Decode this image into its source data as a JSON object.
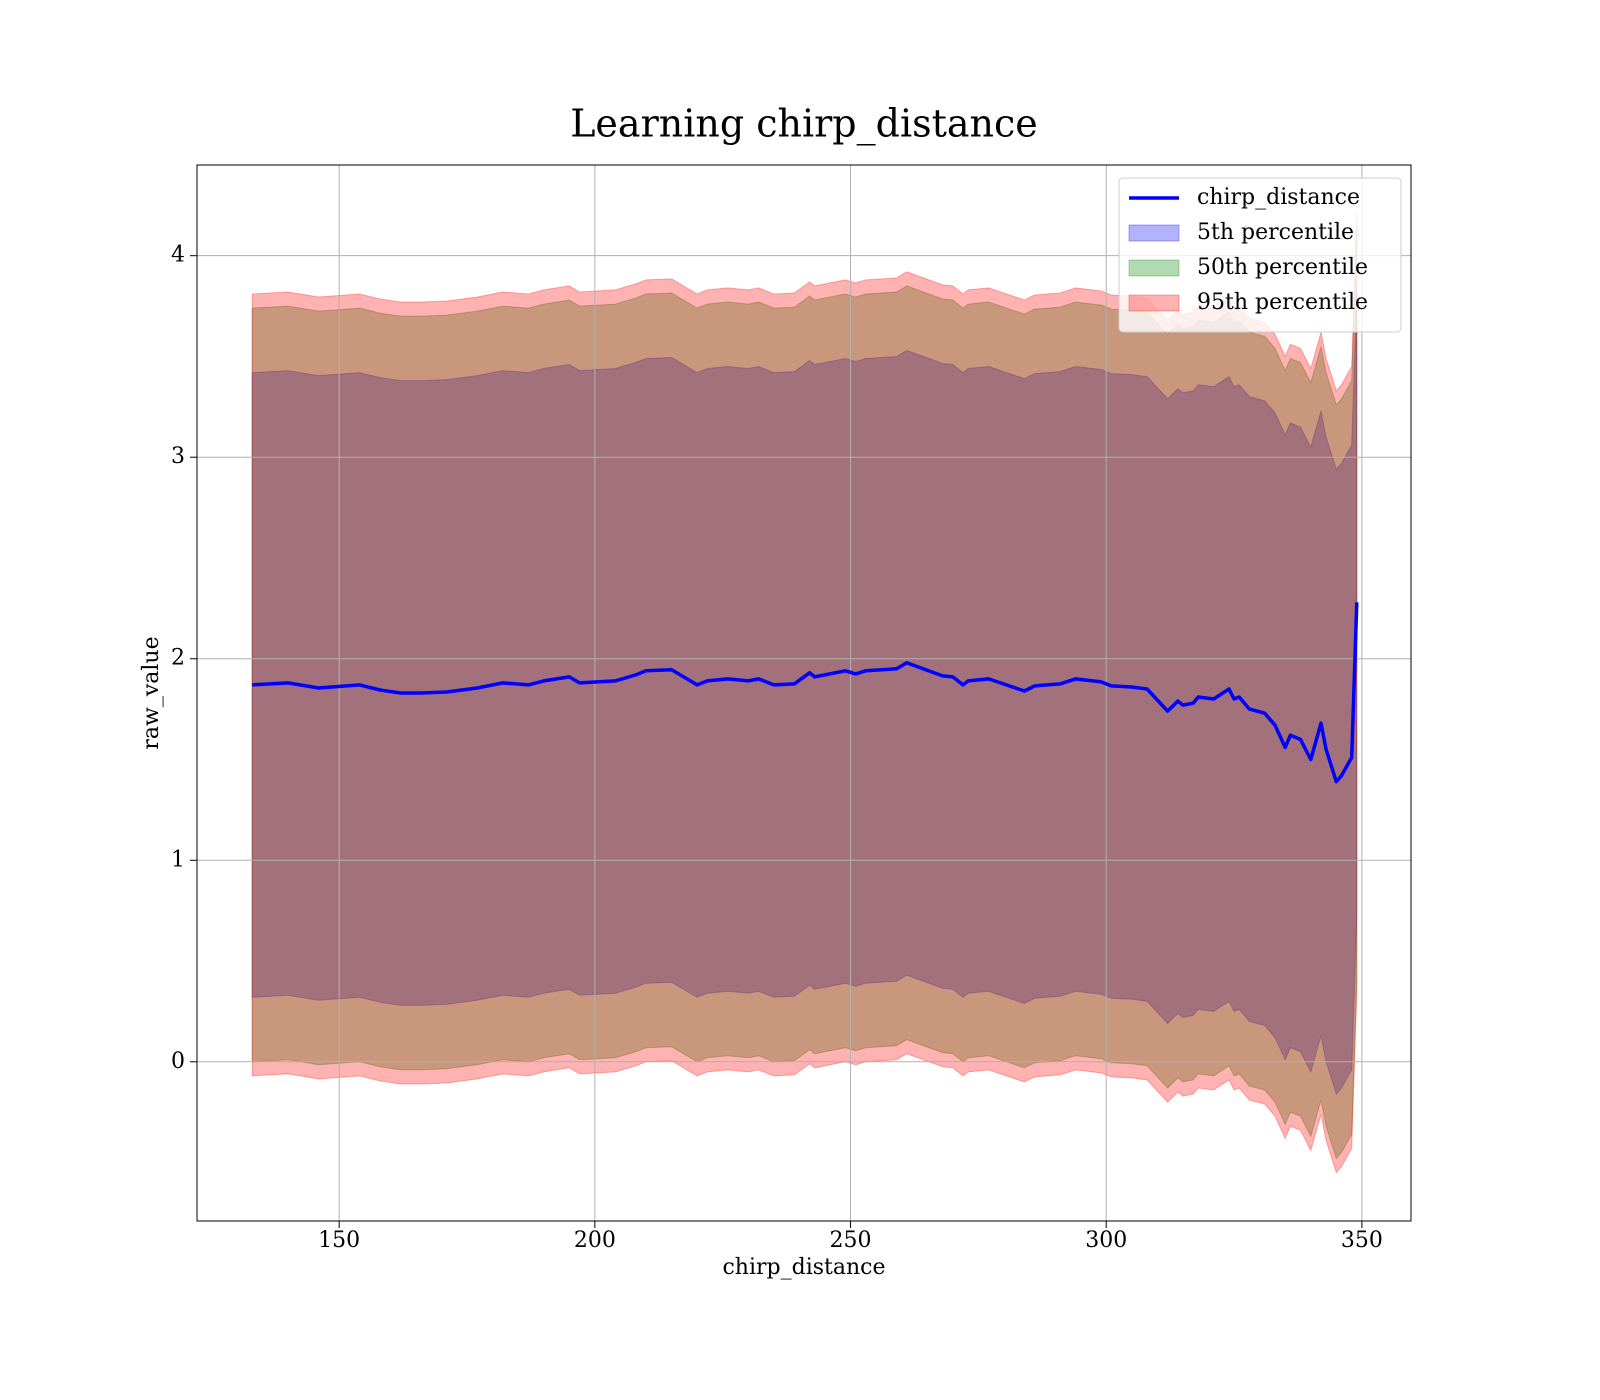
{
  "chart_data": {
    "type": "line",
    "title": "Learning chirp_distance",
    "xlabel": "chirp_distance",
    "ylabel": "raw_value",
    "xlim": [
      122.2,
      359.6
    ],
    "ylim": [
      -0.79,
      4.45
    ],
    "xticks": [
      150,
      200,
      250,
      300,
      350
    ],
    "yticks": [
      0,
      1,
      2,
      3,
      4
    ],
    "grid": true,
    "legend": "upper right",
    "x": [
      133,
      140,
      146,
      154,
      158,
      162,
      166,
      171,
      177,
      182,
      187,
      190,
      195,
      197,
      204,
      208,
      210,
      215,
      220,
      222,
      226,
      230,
      232,
      235,
      239,
      242,
      243,
      249,
      251,
      253,
      259,
      261,
      268,
      270,
      272,
      273,
      277,
      284,
      286,
      291,
      294,
      299,
      301,
      305,
      308,
      312,
      314,
      315,
      317,
      318,
      321,
      324,
      325,
      326,
      328,
      331,
      333,
      335,
      336,
      338,
      340,
      342,
      343,
      345,
      346,
      348,
      349
    ],
    "series": [
      {
        "name": "chirp_distance",
        "color": "#0000ff",
        "values": [
          1.87,
          1.88,
          1.855,
          1.87,
          1.845,
          1.83,
          1.83,
          1.835,
          1.855,
          1.88,
          1.87,
          1.89,
          1.91,
          1.88,
          1.89,
          1.92,
          1.94,
          1.945,
          1.87,
          1.89,
          1.9,
          1.89,
          1.9,
          1.87,
          1.875,
          1.93,
          1.91,
          1.94,
          1.925,
          1.94,
          1.95,
          1.98,
          1.915,
          1.91,
          1.87,
          1.89,
          1.9,
          1.84,
          1.865,
          1.875,
          1.9,
          1.885,
          1.865,
          1.86,
          1.85,
          1.74,
          1.79,
          1.77,
          1.78,
          1.81,
          1.8,
          1.85,
          1.8,
          1.81,
          1.75,
          1.73,
          1.67,
          1.56,
          1.62,
          1.6,
          1.5,
          1.68,
          1.55,
          1.39,
          1.42,
          1.51,
          2.28
        ]
      }
    ],
    "bands": [
      {
        "name": "5th percentile",
        "color": "#0000ff",
        "opacity": 0.3,
        "lower": [
          0.32,
          0.33,
          0.305,
          0.32,
          0.295,
          0.28,
          0.28,
          0.285,
          0.305,
          0.33,
          0.32,
          0.34,
          0.36,
          0.33,
          0.34,
          0.37,
          0.39,
          0.395,
          0.32,
          0.34,
          0.35,
          0.34,
          0.35,
          0.32,
          0.325,
          0.38,
          0.36,
          0.39,
          0.375,
          0.39,
          0.4,
          0.43,
          0.365,
          0.36,
          0.32,
          0.34,
          0.35,
          0.29,
          0.315,
          0.325,
          0.35,
          0.335,
          0.315,
          0.31,
          0.3,
          0.19,
          0.24,
          0.22,
          0.23,
          0.26,
          0.25,
          0.3,
          0.25,
          0.26,
          0.2,
          0.18,
          0.12,
          0.01,
          0.07,
          0.05,
          -0.05,
          0.13,
          0,
          -0.16,
          -0.13,
          -0.04,
          0.73
        ],
        "upper": [
          3.42,
          3.43,
          3.405,
          3.42,
          3.395,
          3.38,
          3.38,
          3.385,
          3.405,
          3.43,
          3.42,
          3.44,
          3.46,
          3.43,
          3.44,
          3.47,
          3.49,
          3.495,
          3.42,
          3.44,
          3.45,
          3.44,
          3.45,
          3.42,
          3.425,
          3.48,
          3.46,
          3.49,
          3.475,
          3.49,
          3.5,
          3.53,
          3.465,
          3.46,
          3.42,
          3.44,
          3.45,
          3.39,
          3.415,
          3.425,
          3.45,
          3.435,
          3.415,
          3.41,
          3.4,
          3.29,
          3.34,
          3.32,
          3.33,
          3.36,
          3.35,
          3.4,
          3.35,
          3.36,
          3.3,
          3.28,
          3.22,
          3.11,
          3.17,
          3.15,
          3.05,
          3.23,
          3.1,
          2.94,
          2.97,
          3.06,
          3.83
        ]
      },
      {
        "name": "50th percentile",
        "color": "#008000",
        "opacity": 0.3,
        "lower": [
          0,
          0.01,
          -0.015,
          0,
          -0.025,
          -0.04,
          -0.04,
          -0.035,
          -0.015,
          0.01,
          0,
          0.02,
          0.04,
          0.01,
          0.02,
          0.05,
          0.07,
          0.075,
          0,
          0.02,
          0.03,
          0.02,
          0.03,
          0,
          0.005,
          0.06,
          0.04,
          0.07,
          0.055,
          0.07,
          0.08,
          0.11,
          0.045,
          0.04,
          0,
          0.02,
          0.03,
          -0.03,
          -0.005,
          0.005,
          0.03,
          0.015,
          -0.005,
          -0.01,
          -0.02,
          -0.13,
          -0.08,
          -0.1,
          -0.09,
          -0.06,
          -0.07,
          -0.02,
          -0.07,
          -0.06,
          -0.12,
          -0.14,
          -0.2,
          -0.31,
          -0.25,
          -0.27,
          -0.37,
          -0.19,
          -0.32,
          -0.48,
          -0.45,
          -0.36,
          0.41
        ],
        "upper": [
          3.74,
          3.75,
          3.725,
          3.74,
          3.715,
          3.7,
          3.7,
          3.705,
          3.725,
          3.75,
          3.74,
          3.76,
          3.78,
          3.75,
          3.76,
          3.79,
          3.81,
          3.815,
          3.74,
          3.76,
          3.77,
          3.76,
          3.77,
          3.74,
          3.745,
          3.8,
          3.78,
          3.81,
          3.795,
          3.81,
          3.82,
          3.85,
          3.785,
          3.78,
          3.74,
          3.76,
          3.77,
          3.71,
          3.735,
          3.745,
          3.77,
          3.755,
          3.735,
          3.73,
          3.72,
          3.61,
          3.66,
          3.64,
          3.65,
          3.68,
          3.67,
          3.72,
          3.67,
          3.68,
          3.62,
          3.6,
          3.54,
          3.43,
          3.49,
          3.47,
          3.37,
          3.55,
          3.42,
          3.26,
          3.29,
          3.38,
          4.15
        ]
      },
      {
        "name": "95th percentile",
        "color": "#ff0000",
        "opacity": 0.3,
        "lower": [
          -0.07,
          -0.06,
          -0.085,
          -0.07,
          -0.095,
          -0.11,
          -0.11,
          -0.105,
          -0.085,
          -0.06,
          -0.07,
          -0.05,
          -0.03,
          -0.06,
          -0.05,
          -0.02,
          0,
          0.005,
          -0.07,
          -0.05,
          -0.04,
          -0.05,
          -0.04,
          -0.07,
          -0.065,
          -0.01,
          -0.03,
          0,
          -0.015,
          0,
          0.01,
          0.04,
          -0.025,
          -0.03,
          -0.07,
          -0.05,
          -0.04,
          -0.1,
          -0.075,
          -0.065,
          -0.04,
          -0.055,
          -0.075,
          -0.08,
          -0.09,
          -0.2,
          -0.15,
          -0.17,
          -0.16,
          -0.13,
          -0.14,
          -0.09,
          -0.14,
          -0.13,
          -0.19,
          -0.21,
          -0.27,
          -0.38,
          -0.32,
          -0.34,
          -0.44,
          -0.26,
          -0.39,
          -0.55,
          -0.52,
          -0.43,
          0.34
        ],
        "upper": [
          3.81,
          3.82,
          3.795,
          3.81,
          3.785,
          3.77,
          3.77,
          3.775,
          3.795,
          3.82,
          3.81,
          3.83,
          3.85,
          3.82,
          3.83,
          3.86,
          3.88,
          3.885,
          3.81,
          3.83,
          3.84,
          3.83,
          3.84,
          3.81,
          3.815,
          3.87,
          3.85,
          3.88,
          3.865,
          3.88,
          3.89,
          3.92,
          3.855,
          3.85,
          3.81,
          3.83,
          3.84,
          3.78,
          3.805,
          3.815,
          3.84,
          3.825,
          3.805,
          3.8,
          3.79,
          3.68,
          3.73,
          3.71,
          3.72,
          3.75,
          3.74,
          3.79,
          3.74,
          3.75,
          3.69,
          3.67,
          3.61,
          3.5,
          3.56,
          3.54,
          3.44,
          3.62,
          3.49,
          3.33,
          3.36,
          3.45,
          4.22
        ]
      }
    ]
  }
}
